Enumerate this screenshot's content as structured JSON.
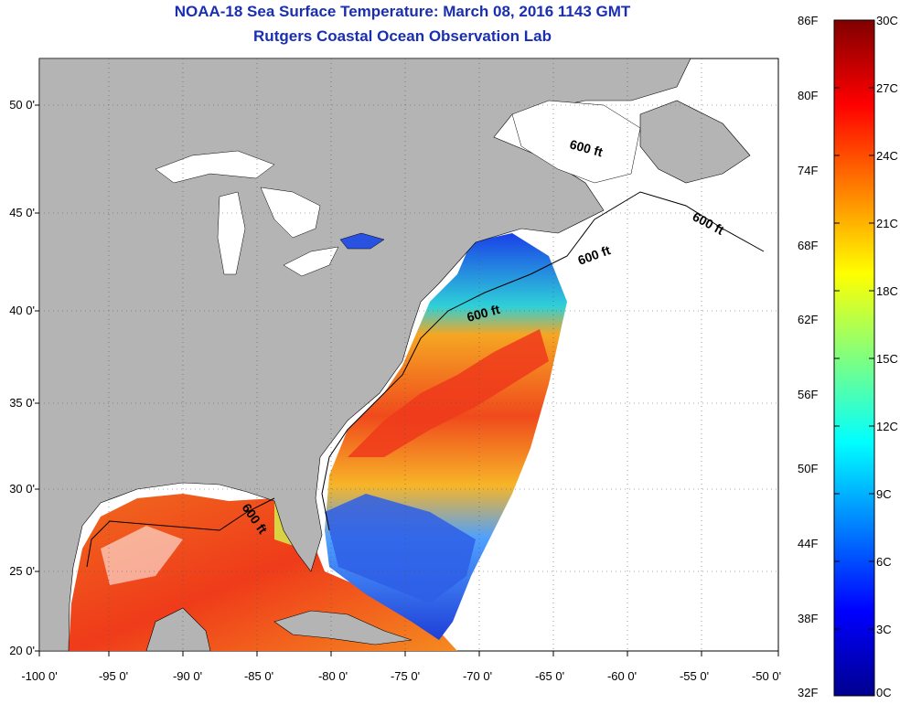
{
  "header": {
    "title": "NOAA-18 Sea Surface Temperature:  March 08, 2016 1143 GMT",
    "subtitle": "Rutgers Coastal Ocean Observation Lab"
  },
  "map": {
    "lat_labels": [
      "50 0'",
      "45 0'",
      "40 0'",
      "35 0'",
      "30 0'",
      "25 0'",
      "20 0'"
    ],
    "lon_labels": [
      "-100 0'",
      "-95 0'",
      "-90 0'",
      "-85 0'",
      "-80 0'",
      "-75 0'",
      "-70 0'",
      "-65 0'",
      "-60 0'",
      "-55 0'",
      "-50 0'"
    ],
    "isobath_label": "600 ft",
    "colors": {
      "land": "#b4b4b4",
      "no_data": "#ffffff",
      "ocean_warm": "#f2561d",
      "ocean_cool": "#2a5ee0"
    }
  },
  "colorbar": {
    "fahrenheit_labels": [
      "86F",
      "80F",
      "74F",
      "68F",
      "62F",
      "56F",
      "50F",
      "44F",
      "38F",
      "32F"
    ],
    "celsius_labels": [
      "30C",
      "27C",
      "24C",
      "21C",
      "18C",
      "15C",
      "12C",
      "9C",
      "6C",
      "3C",
      "0C"
    ],
    "range_c": [
      0,
      30
    ],
    "range_f": [
      32,
      86
    ],
    "colormap": "jet"
  }
}
